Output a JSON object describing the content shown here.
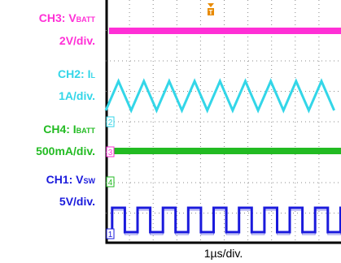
{
  "labels": {
    "ch3": {
      "name": "CH3: V",
      "sub": "BATT",
      "scale": "2V/div.",
      "color": "#ff2fd6"
    },
    "ch2": {
      "name": "CH2: I",
      "sub": "L",
      "scale": "1A/div.",
      "color": "#33d6e8"
    },
    "ch4": {
      "name": "CH4: I",
      "sub": "BATT",
      "scale": "500mA/div.",
      "color": "#22bb22"
    },
    "ch1": {
      "name": "CH1: V",
      "sub": "SW",
      "scale": "5V/div.",
      "color": "#1a1adc"
    }
  },
  "timebase": "1µs/div.",
  "chart_data": {
    "type": "line",
    "x_unit": "µs",
    "x_range": [
      0,
      5.6
    ],
    "grid": true,
    "channel_markers": [
      "2",
      "3",
      "4",
      "1"
    ],
    "trigger_marker": "T",
    "series": [
      {
        "name": "CH3: VBATT",
        "color": "#ff2fd6",
        "description": "flat DC level",
        "ripple": "small"
      },
      {
        "name": "CH2: IL",
        "color": "#33d6e8",
        "description": "triangle wave",
        "period_us": 0.6,
        "cycles_visible": 9.5
      },
      {
        "name": "CH4: IBATT",
        "color": "#22bb22",
        "description": "flat DC level",
        "ripple": "small"
      },
      {
        "name": "CH1: VSW",
        "color": "#1a1adc",
        "description": "square wave",
        "period_us": 0.6,
        "duty": 0.5
      }
    ]
  }
}
